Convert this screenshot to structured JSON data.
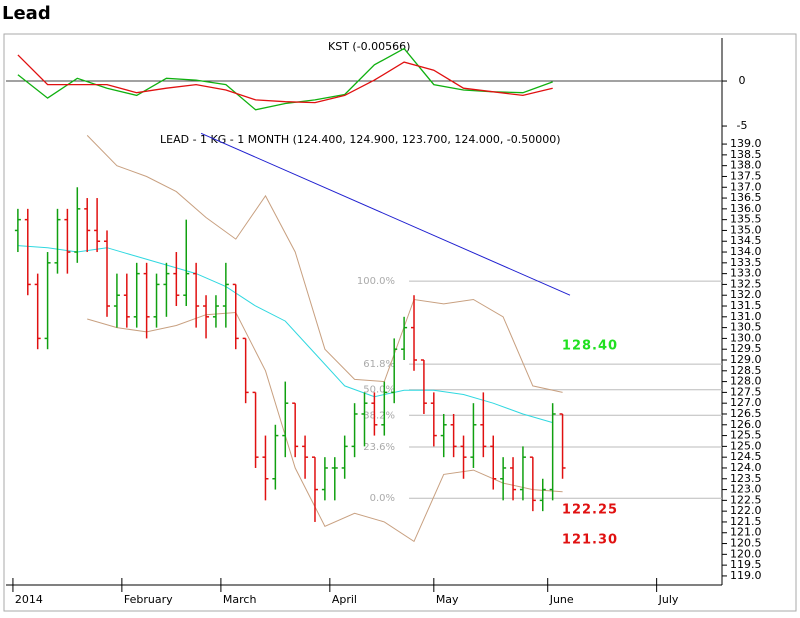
{
  "title": "Lead",
  "chart_data": [
    {
      "type": "line",
      "title": "KST (-0.00566)",
      "x": [
        0,
        6,
        12,
        18,
        24,
        30,
        36,
        42,
        48,
        54,
        60,
        66,
        72,
        78,
        84,
        90,
        96,
        102,
        108
      ],
      "series": [
        {
          "color": "#10b010",
          "values": [
            0.7,
            -1.9,
            0.3,
            -0.8,
            -1.6,
            0.3,
            0.1,
            -0.4,
            -3.2,
            -2.5,
            -2.1,
            -1.5,
            1.8,
            3.6,
            -0.4,
            -1,
            -1.2,
            -1.3,
            -0.1
          ]
        },
        {
          "color": "#e01010",
          "values": [
            2.9,
            -0.4,
            -0.4,
            -0.4,
            -1.3,
            -0.8,
            -0.4,
            -1,
            -2.1,
            -2.3,
            -2.4,
            -1.6,
            0.1,
            2.1,
            1.2,
            -0.8,
            -1.2,
            -1.6,
            -0.8
          ]
        }
      ],
      "xlim": [
        -2.4,
        142.2
      ],
      "ylim": [
        -5.44,
        4.78
      ],
      "yticks": [
        0,
        -5
      ],
      "reference_line": 0
    },
    {
      "type": "ohlc",
      "title": "LEAD - 1 KG - 1 MONTH (124.400, 124.900, 123.700, 124.000, -0.50000)",
      "x": [
        0,
        2,
        4,
        6,
        8,
        10,
        12,
        14,
        16,
        18,
        20,
        22,
        24,
        26,
        28,
        30,
        32,
        34,
        36,
        38,
        40,
        42,
        44,
        46,
        48,
        50,
        52,
        54,
        56,
        58,
        60,
        62,
        64,
        66,
        68,
        70,
        72,
        74,
        76,
        78,
        80,
        82,
        84,
        86,
        88,
        90,
        92,
        94,
        96,
        98,
        100,
        102,
        104,
        106,
        108,
        110
      ],
      "open": [
        135,
        135.5,
        132.5,
        130,
        133.5,
        135.5,
        134,
        136,
        135,
        134.5,
        131.5,
        132,
        131,
        133,
        131,
        132.5,
        133,
        132,
        133,
        131.5,
        131,
        131.5,
        132.5,
        130,
        127.5,
        124.5,
        123.5,
        125.5,
        127,
        125,
        124.5,
        123,
        124,
        124,
        125,
        126.5,
        127,
        126,
        127.5,
        129.5,
        130.5,
        129,
        127,
        125.5,
        126,
        125,
        124.5,
        126,
        125,
        123.5,
        124,
        123,
        124.5,
        122.5,
        123,
        126.5
      ],
      "high": [
        136,
        136,
        133,
        134,
        136,
        136,
        137,
        136.5,
        136.5,
        135,
        133,
        133,
        133.5,
        133.5,
        133,
        133.5,
        134,
        135.5,
        133.5,
        132,
        132,
        133.5,
        132.5,
        130,
        127.5,
        125.5,
        126,
        128,
        127,
        125.5,
        124.5,
        124.5,
        124.5,
        125.5,
        127,
        127.5,
        127.5,
        128,
        130,
        131,
        132,
        129,
        127.5,
        126.5,
        126.5,
        125.5,
        127,
        127.5,
        125.5,
        124.5,
        124.5,
        125,
        124.5,
        123.5,
        127,
        126.5
      ],
      "low": [
        134,
        132,
        129.5,
        129.5,
        133,
        133,
        133.5,
        134,
        134,
        131,
        130.5,
        130.5,
        130.5,
        130,
        130.5,
        131,
        131.5,
        131.5,
        130.5,
        130,
        130.5,
        130.5,
        129.5,
        127,
        124,
        122.5,
        123,
        124.5,
        124.5,
        123.5,
        121.5,
        122.5,
        122.5,
        123.5,
        124.5,
        125,
        125.5,
        125.5,
        127,
        129,
        128.5,
        126.5,
        125,
        124.5,
        124.5,
        123.5,
        124,
        124.5,
        123,
        122.5,
        122.5,
        122.5,
        122,
        122,
        122.5,
        123.5
      ],
      "close": [
        135.5,
        132.5,
        130,
        133.5,
        135.5,
        134,
        136,
        135,
        134.5,
        131.5,
        132,
        131,
        133,
        131,
        132.5,
        133,
        132,
        133,
        131.5,
        131,
        131.5,
        132.5,
        130,
        127.5,
        124.5,
        123.5,
        125.5,
        127,
        125,
        124.5,
        123,
        124,
        124,
        125,
        126.5,
        127,
        126,
        127.5,
        129.5,
        130.5,
        129,
        127,
        125.5,
        126,
        125,
        124.5,
        126,
        125,
        123.5,
        124,
        123,
        124.5,
        122.5,
        123,
        126.5,
        124
      ],
      "up_color": "#10a010",
      "down_color": "#e01010",
      "xlim": [
        -2.4,
        142.2
      ],
      "ylim": [
        118.58,
        139.42
      ],
      "yticks": [
        {
          "value": 119,
          "label": "119.0"
        },
        {
          "value": 119.5,
          "label": "119.5"
        },
        {
          "value": 120,
          "label": "120.0"
        },
        {
          "value": 120.5,
          "label": "120.5"
        },
        {
          "value": 121,
          "label": "121.0"
        },
        {
          "value": 121.5,
          "label": "121.5"
        },
        {
          "value": 122,
          "label": "122.0"
        },
        {
          "value": 122.5,
          "label": "122.5"
        },
        {
          "value": 123,
          "label": "123.0"
        },
        {
          "value": 123.5,
          "label": "123.5"
        },
        {
          "value": 124,
          "label": "124.0"
        },
        {
          "value": 124.5,
          "label": "124.5"
        },
        {
          "value": 125,
          "label": "125.0"
        },
        {
          "value": 125.5,
          "label": "125.5"
        },
        {
          "value": 126,
          "label": "126.0"
        },
        {
          "value": 126.5,
          "label": "126.5"
        },
        {
          "value": 127,
          "label": "127.0"
        },
        {
          "value": 127.5,
          "label": "127.5"
        },
        {
          "value": 128,
          "label": "128.0"
        },
        {
          "value": 128.5,
          "label": "128.5"
        },
        {
          "value": 129,
          "label": "129.0"
        },
        {
          "value": 129.5,
          "label": "129.5"
        },
        {
          "value": 130,
          "label": "130.0"
        },
        {
          "value": 130.5,
          "label": "130.5"
        },
        {
          "value": 131,
          "label": "131.0"
        },
        {
          "value": 131.5,
          "label": "131.5"
        },
        {
          "value": 132,
          "label": "132.0"
        },
        {
          "value": 132.5,
          "label": "132.5"
        },
        {
          "value": 133,
          "label": "133.0"
        },
        {
          "value": 133.5,
          "label": "133.5"
        },
        {
          "value": 134,
          "label": "134.0"
        },
        {
          "value": 134.5,
          "label": "134.5"
        },
        {
          "value": 135,
          "label": "135.0"
        },
        {
          "value": 135.5,
          "label": "135.5"
        },
        {
          "value": 136,
          "label": "136.0"
        },
        {
          "value": 136.5,
          "label": "136.5"
        },
        {
          "value": 137,
          "label": "137.0"
        },
        {
          "value": 137.5,
          "label": "137.5"
        },
        {
          "value": 138,
          "label": "138.0"
        },
        {
          "value": 138.5,
          "label": "138.5"
        },
        {
          "value": 139,
          "label": "139.0"
        }
      ],
      "xticks": [
        {
          "value": -1,
          "label": "2014"
        },
        {
          "value": 21,
          "label": "February"
        },
        {
          "value": 41,
          "label": "March"
        },
        {
          "value": 63,
          "label": "April"
        },
        {
          "value": 84,
          "label": "May"
        },
        {
          "value": 107,
          "label": "June"
        },
        {
          "value": 129,
          "label": "July"
        }
      ],
      "overlays": [
        {
          "color": "#30d8e0",
          "x": [
            0,
            6,
            12,
            18,
            24,
            30,
            36,
            42,
            48,
            54,
            60,
            66,
            72,
            78,
            84,
            90,
            96,
            102,
            108
          ],
          "values": [
            134.3,
            134.2,
            134,
            134.2,
            133.8,
            133.4,
            133,
            132.4,
            131.5,
            130.8,
            129.3,
            127.8,
            127.3,
            127.6,
            127.6,
            127.4,
            127,
            126.5,
            126.1
          ]
        },
        {
          "color": "#c8a080",
          "x": [
            14,
            20,
            26,
            32,
            38,
            44,
            50,
            56,
            62,
            68,
            74,
            80,
            86,
            92,
            98,
            104,
            110
          ],
          "values": [
            139.4,
            138,
            137.5,
            136.8,
            135.6,
            134.6,
            136.6,
            134,
            129.5,
            128.1,
            128,
            131.8,
            131.6,
            131.8,
            131,
            127.8,
            127.5
          ]
        },
        {
          "color": "#c8a080",
          "x": [
            14,
            20,
            26,
            32,
            38,
            44,
            50,
            56,
            62,
            68,
            74,
            80,
            86,
            92,
            98,
            104,
            110
          ],
          "values": [
            130.9,
            130.5,
            130.3,
            130.6,
            131.1,
            131.2,
            128.5,
            124,
            121.3,
            121.9,
            121.5,
            120.6,
            123.7,
            123.9,
            123.3,
            123,
            122.9
          ]
        }
      ],
      "trend_line": {
        "color": "#2020d0",
        "x": [
          37,
          111.5
        ],
        "values": [
          139.5,
          132
        ]
      },
      "fibonacci": {
        "start_x": 79,
        "low": 122.6,
        "high": 132.65,
        "levels": [
          {
            "value": 100,
            "label": "100.0%"
          },
          {
            "value": 61.8,
            "label": "61.8%"
          },
          {
            "value": 50,
            "label": "50.0%"
          },
          {
            "value": 38.2,
            "label": "38.2%"
          },
          {
            "value": 23.6,
            "label": "23.6%"
          },
          {
            "value": 0,
            "label": "0.0%"
          }
        ]
      },
      "annotations": [
        {
          "text": "128.40",
          "color": "#20e020"
        },
        {
          "text": "122.25",
          "color": "#e01010"
        },
        {
          "text": "121.30",
          "color": "#e01010"
        }
      ]
    }
  ]
}
